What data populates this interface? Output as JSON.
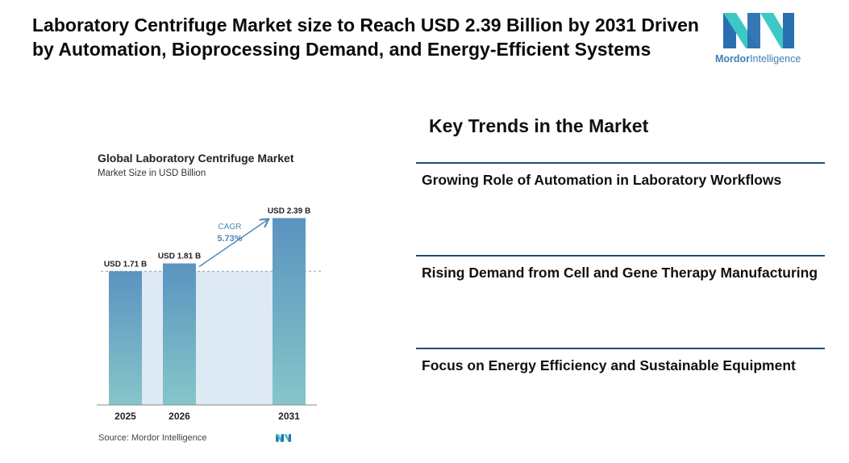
{
  "headline": "Laboratory Centrifuge Market size to Reach USD 2.39 Billion by 2031 Driven by Automation, Bioprocessing Demand, and Energy-Efficient Systems",
  "brand": {
    "name_part1": "Mordor",
    "name_part2": "Intelligence",
    "logo_icon": "mordor-intelligence-logo",
    "colors": {
      "dark": "#2a70b0",
      "teal": "#3cc8c6"
    }
  },
  "chart_data": {
    "type": "bar",
    "title": "Global Laboratory Centrifuge Market",
    "subtitle": "Market Size in USD Billion",
    "categories": [
      "2025",
      "2026",
      "2031"
    ],
    "values": [
      1.71,
      1.81,
      2.39
    ],
    "data_labels": [
      "USD 1.71 B",
      "USD 1.81 B",
      "USD 2.39 B"
    ],
    "ylim": [
      0,
      2.6
    ],
    "xlabel": "",
    "ylabel": "",
    "cagr_label": "CAGR",
    "cagr_value": "5.73%",
    "source": "Source:  Mordor Intelligence",
    "bar_color_top": "#5b93bf",
    "bar_color_bottom": "#86c6ca",
    "shade_color": "#dde9f3"
  },
  "trends": {
    "title": "Key Trends in the Market",
    "items": [
      "Growing Role of Automation in Laboratory Workflows",
      "Rising Demand from Cell and Gene Therapy Manufacturing",
      "Focus on Energy Efficiency and Sustainable Equipment"
    ]
  }
}
